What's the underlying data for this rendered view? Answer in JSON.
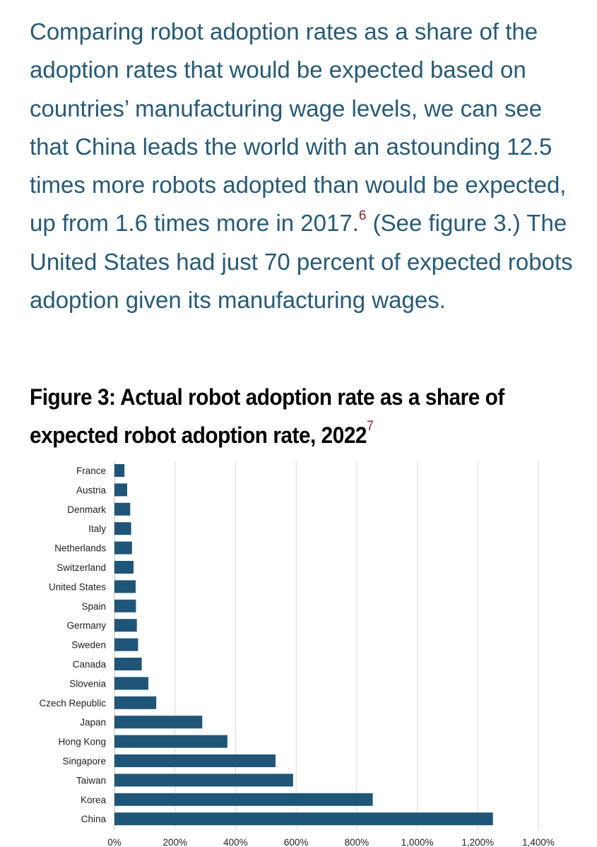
{
  "body_text": {
    "part1": "Comparing robot adoption rates as a share of the adoption rates that would be expected based on countries’ manufacturing wage levels, we can see that China leads the world with an astounding 12.5 times more robots adopted than would be expected, up from 1.6 times more in 2017.",
    "footnote": "6",
    "part2": " (See figure 3.) The United States had just 70 percent of expected robots adoption given its manufacturing wages."
  },
  "figure": {
    "title": "Figure 3: Actual robot adoption rate as a share of expected robot adoption rate, 2022",
    "footnote": "7"
  },
  "colors": {
    "bar": "#1f5678",
    "grid": "#d9d9d9",
    "text": "#275a76",
    "footnote": "#8a2430"
  },
  "chart_data": {
    "type": "bar",
    "orientation": "horizontal",
    "title": "Figure 3: Actual robot adoption rate as a share of expected robot adoption rate, 2022",
    "categories": [
      "France",
      "Austria",
      "Denmark",
      "Italy",
      "Netherlands",
      "Switzerland",
      "United States",
      "Spain",
      "Germany",
      "Sweden",
      "Canada",
      "Slovenia",
      "Czech Republic",
      "Japan",
      "Hong Kong",
      "Singapore",
      "Taiwan",
      "Korea",
      "China"
    ],
    "values": [
      33,
      42,
      52,
      55,
      58,
      63,
      70,
      71,
      74,
      78,
      90,
      112,
      138,
      290,
      373,
      532,
      590,
      853,
      1250
    ],
    "units": "percent",
    "xlabel": "",
    "ylabel": "",
    "xlim": [
      0,
      1400
    ],
    "xticks": [
      0,
      200,
      400,
      600,
      800,
      1000,
      1200,
      1400
    ],
    "xtick_labels": [
      "0%",
      "200%",
      "400%",
      "600%",
      "800%",
      "1,000%",
      "1,200%",
      "1,400%"
    ],
    "grid": true,
    "legend": "none"
  }
}
